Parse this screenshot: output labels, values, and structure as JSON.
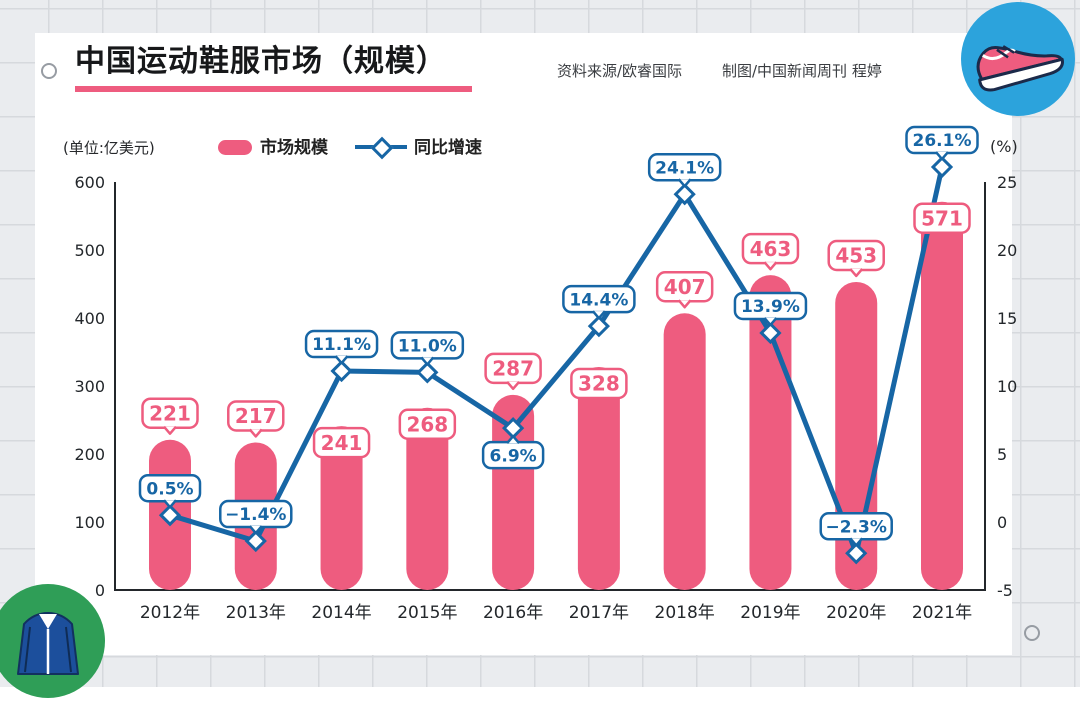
{
  "header": {
    "title": "中国运动鞋服市场（规模）",
    "source": "资料来源/欧睿国际",
    "credit": "制图/中国新闻周刊 程婷",
    "unit_left": "(单位:亿美元)",
    "unit_right": "(%)"
  },
  "legend": {
    "bar_label": "市场规模",
    "line_label": "同比增速"
  },
  "colors": {
    "bar": "#ee5c7f",
    "line": "#1766a5",
    "axis": "#23272b",
    "sneaker_badge": "#2ca3dc",
    "jacket_badge": "#2f9e57"
  },
  "chart_data": {
    "type": "bar+line",
    "title": "中国运动鞋服市场（规模）",
    "categories": [
      "2012年",
      "2013年",
      "2014年",
      "2015年",
      "2016年",
      "2017年",
      "2018年",
      "2019年",
      "2020年",
      "2021年"
    ],
    "series": [
      {
        "name": "市场规模",
        "type": "bar",
        "axis": "left",
        "unit": "亿美元",
        "values": [
          221,
          217,
          241,
          268,
          287,
          328,
          407,
          463,
          453,
          571
        ],
        "label_pos": [
          "above",
          "above",
          "inside",
          "inside",
          "above",
          "inside",
          "above",
          "above",
          "above",
          "inside"
        ]
      },
      {
        "name": "同比增速",
        "type": "line",
        "axis": "right",
        "unit": "%",
        "values": [
          0.5,
          -1.4,
          11.1,
          11.0,
          6.9,
          14.4,
          24.1,
          13.9,
          -2.3,
          26.1
        ],
        "labels": [
          "0.5%",
          "−1.4%",
          "11.1%",
          "11.0%",
          "6.9%",
          "14.4%",
          "24.1%",
          "13.9%",
          "−2.3%",
          "26.1%"
        ],
        "label_pos": [
          "above",
          "above",
          "above",
          "above",
          "below",
          "above",
          "above",
          "above",
          "above",
          "above"
        ]
      }
    ],
    "left_axis": {
      "min": 0,
      "max": 600,
      "ticks": [
        600,
        500,
        400,
        300,
        200,
        100,
        0
      ]
    },
    "right_axis": {
      "min": -5,
      "max": 25,
      "ticks": [
        25,
        20,
        15,
        10,
        5,
        0,
        -5
      ]
    },
    "grid": false,
    "legend_position": "top"
  }
}
